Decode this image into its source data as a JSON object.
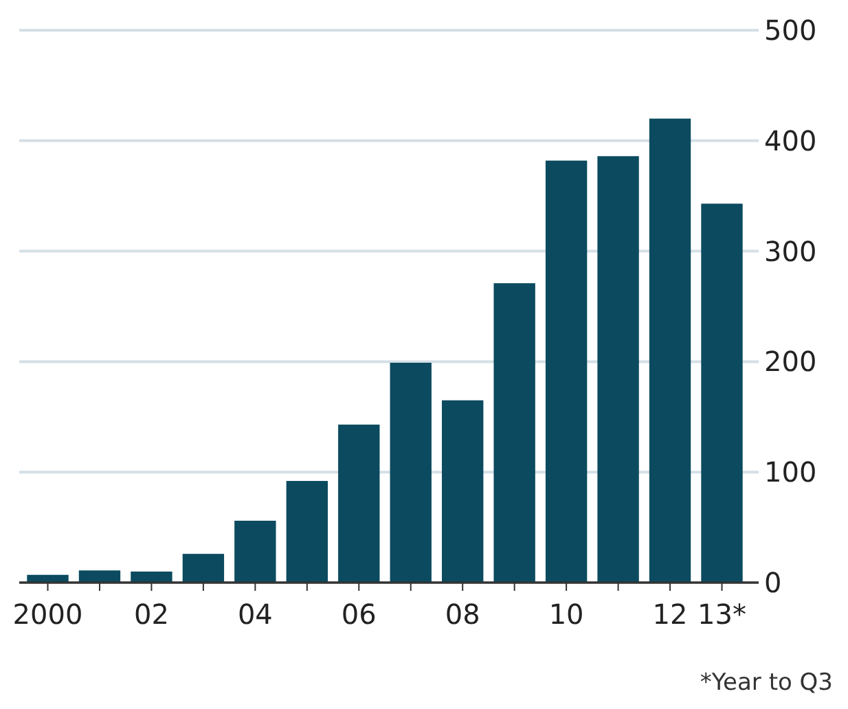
{
  "chart_data": {
    "type": "bar",
    "categories": [
      "2000",
      null,
      "02",
      null,
      "04",
      null,
      "06",
      null,
      "08",
      null,
      "10",
      null,
      "12",
      "13*"
    ],
    "values": [
      7,
      11,
      10,
      26,
      56,
      92,
      143,
      199,
      165,
      271,
      382,
      386,
      420,
      343
    ],
    "color": "#0b4a5f",
    "ylim": [
      0,
      500
    ],
    "yticks": [
      0,
      100,
      200,
      300,
      400,
      500
    ],
    "grid": "y",
    "annotations": [
      "*Year to Q3"
    ]
  }
}
